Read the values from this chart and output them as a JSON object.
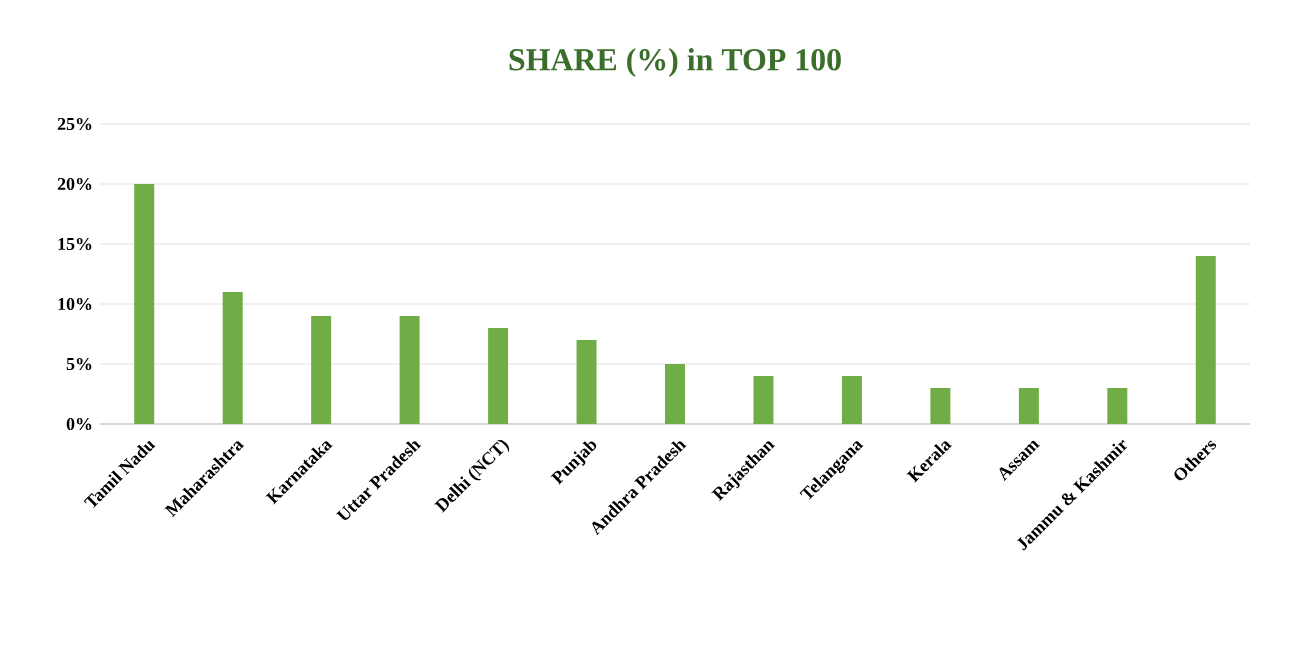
{
  "chart_data": {
    "type": "bar",
    "title": "SHARE (%) in TOP 100",
    "categories": [
      "Tamil Nadu",
      "Maharashtra",
      "Karnataka",
      "Uttar Pradesh",
      "Delhi (NCT)",
      "Punjab",
      "Andhra Pradesh",
      "Rajasthan",
      "Telangana",
      "Kerala",
      "Assam",
      "Jammu & Kashmir",
      "Others"
    ],
    "values": [
      20,
      11,
      9,
      9,
      8,
      7,
      5,
      4,
      4,
      3,
      3,
      3,
      14
    ],
    "color": "#70ad47",
    "ylim": [
      0,
      25
    ],
    "yticks": [
      {
        "value": 0,
        "label": "0%"
      },
      {
        "value": 5,
        "label": "5%"
      },
      {
        "value": 10,
        "label": "10%"
      },
      {
        "value": 15,
        "label": "15%"
      },
      {
        "value": 20,
        "label": "20%"
      },
      {
        "value": 25,
        "label": "25%"
      }
    ],
    "grid": "y"
  }
}
